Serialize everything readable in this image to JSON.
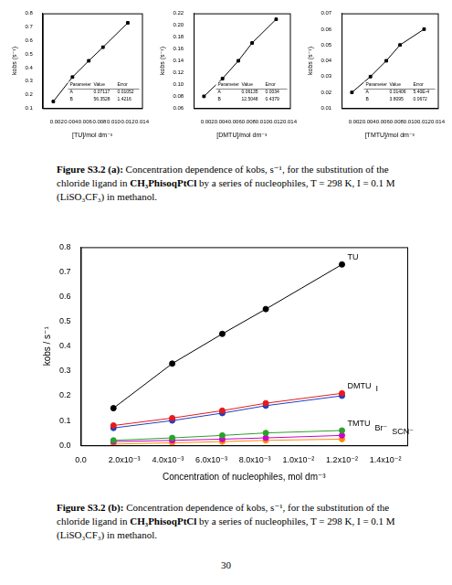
{
  "chart_data": [
    {
      "type": "scatter",
      "x_label": "[TU]/mol dm⁻³",
      "y_label": "kobs (s⁻¹)",
      "x": [
        0.0015,
        0.0042,
        0.0065,
        0.0085,
        0.012
      ],
      "series": [
        {
          "color": "#000000",
          "values": [
            0.15,
            0.33,
            0.45,
            0.55,
            0.73
          ],
          "marker": "rect",
          "line_style": "solid"
        }
      ],
      "xlim": [
        0,
        0.014
      ],
      "xticks": [
        0.002,
        0.004,
        0.006,
        0.008,
        {
          "value": 0.01,
          "label": "0.010"
        },
        0.012,
        0.014
      ],
      "ylim": [
        0.1,
        0.8
      ],
      "yticks": [
        0.1,
        0.2,
        0.3,
        0.4,
        0.5,
        0.6,
        0.7,
        0.8
      ],
      "grid": false,
      "annotations": [
        [
          "Parameter",
          "Value",
          "Error"
        ],
        [
          "A",
          "0.07117",
          "0.01052"
        ],
        [
          "B",
          "56.3528",
          "1.4216"
        ]
      ]
    },
    {
      "type": "scatter",
      "x_label": "[DMTU]/mol dm⁻³",
      "y_label": "kobs (s⁻¹)",
      "x": [
        0.0015,
        0.0042,
        0.0065,
        0.0085,
        0.012
      ],
      "series": [
        {
          "color": "#000000",
          "values": [
            0.08,
            0.11,
            0.14,
            0.17,
            0.21
          ],
          "marker": "rect",
          "line_style": "solid"
        }
      ],
      "xlim": [
        0,
        0.014
      ],
      "xticks": [
        0.002,
        0.004,
        0.006,
        0.008,
        {
          "value": 0.01,
          "label": "0.010"
        },
        0.012,
        0.014
      ],
      "ylim": [
        0.06,
        0.22
      ],
      "yticks": [
        0.06,
        0.08,
        {
          "value": 0.1,
          "label": "0.10"
        },
        0.12,
        0.14,
        0.16,
        0.18,
        {
          "value": 0.2,
          "label": "0.20"
        },
        0.22
      ],
      "grid": false,
      "annotations": [
        [
          "Parameter",
          "Value",
          "Error"
        ],
        [
          "A",
          "0.06135",
          "0.0034"
        ],
        [
          "B",
          "12.5048",
          "0.4379"
        ]
      ]
    },
    {
      "type": "scatter",
      "x_label": "[TMTU]/mol dm⁻³",
      "y_label": "kobs (s⁻¹)",
      "x": [
        0.0015,
        0.0042,
        0.0065,
        0.0085,
        0.012
      ],
      "series": [
        {
          "color": "#000000",
          "values": [
            0.02,
            0.03,
            0.04,
            0.05,
            0.06
          ],
          "marker": "rect",
          "line_style": "solid"
        }
      ],
      "xlim": [
        0,
        0.014
      ],
      "xticks": [
        0.002,
        0.004,
        0.006,
        0.008,
        {
          "value": 0.01,
          "label": "0.010"
        },
        0.012,
        0.014
      ],
      "ylim": [
        0.01,
        0.07
      ],
      "yticks": [
        0.01,
        0.02,
        0.03,
        0.04,
        0.05,
        0.06,
        0.07
      ],
      "grid": false,
      "annotations": [
        [
          "Parameter",
          "Value",
          "Error"
        ],
        [
          "A",
          "0.01406",
          "5.40E-4"
        ],
        [
          "B",
          "3.8095",
          "0.0672"
        ]
      ]
    },
    {
      "type": "scatter",
      "x_label": "Concentration of nucleophiles, mol dm⁻³",
      "y_label": "kobs / s⁻¹",
      "x": [
        0.0015,
        0.0042,
        0.0065,
        0.0085,
        0.012
      ],
      "series": [
        {
          "name": "TU",
          "color": "#000000",
          "values": [
            0.15,
            0.33,
            0.45,
            0.55,
            0.73
          ],
          "marker": "circle",
          "line_style": "solid"
        },
        {
          "name": "DMTU",
          "color": "#e41a1c",
          "values": [
            0.08,
            0.11,
            0.14,
            0.17,
            0.21
          ],
          "marker": "circle",
          "line_style": "solid"
        },
        {
          "name": "I",
          "color": "#1f3fbf",
          "values": [
            0.07,
            0.1,
            0.13,
            0.16,
            0.2
          ],
          "marker": "circle",
          "line_style": "solid"
        },
        {
          "name": "TMTU",
          "color": "#2ca02c",
          "values": [
            0.02,
            0.03,
            0.04,
            0.05,
            0.06
          ],
          "marker": "circle",
          "line_style": "solid"
        },
        {
          "name": "Br⁻",
          "color": "#cc00cc",
          "values": [
            0.015,
            0.02,
            0.025,
            0.03,
            0.04
          ],
          "marker": "circle",
          "line_style": "solid"
        },
        {
          "name": "SCN⁻",
          "color": "#ff8c00",
          "values": [
            0.005,
            0.01,
            0.015,
            0.02,
            0.025
          ],
          "marker": "circle",
          "line_style": "solid"
        }
      ],
      "xlim": [
        0,
        0.015
      ],
      "xticks": [
        {
          "value": 0,
          "label": "0.0"
        },
        {
          "value": 0.002,
          "label": "2.0x10⁻³"
        },
        {
          "value": 0.004,
          "label": "4.0x10⁻³"
        },
        {
          "value": 0.006,
          "label": "6.0x10⁻³"
        },
        {
          "value": 0.008,
          "label": "8.0x10⁻³"
        },
        {
          "value": 0.01,
          "label": "1.0x10⁻²"
        },
        {
          "value": 0.012,
          "label": "1.2x10⁻²"
        },
        {
          "value": 0.014,
          "label": "1.4x10⁻²"
        }
      ],
      "ylim": [
        0,
        0.8
      ],
      "yticks": [
        {
          "value": 0,
          "label": "0.0"
        },
        0.1,
        0.2,
        0.3,
        0.4,
        0.5,
        0.6,
        0.7,
        0.8
      ],
      "grid": false
    }
  ],
  "captions": [
    {
      "label": "Figure S3.2 (a):",
      "text": "Concentration dependence of kobs, s⁻¹, for the substitution of the chloride ligand in",
      "compound": "CH₃PhisoqPtCl",
      "text_after": "by a series of nucleophiles, T = 298 K, I = 0.1 M (LiSO₃CF₃) in methanol."
    },
    {
      "label": "Figure S3.2 (b):",
      "text": "Concentration dependence of kobs, s⁻¹, for the substitution of the chloride ligand in",
      "compound": "CH₃PhisoqPtCl",
      "text_after": "by a series of nucleophiles, T = 298 K, I = 0.1 M (LiSO₃CF₃) in methanol."
    }
  ],
  "page_number": 30
}
